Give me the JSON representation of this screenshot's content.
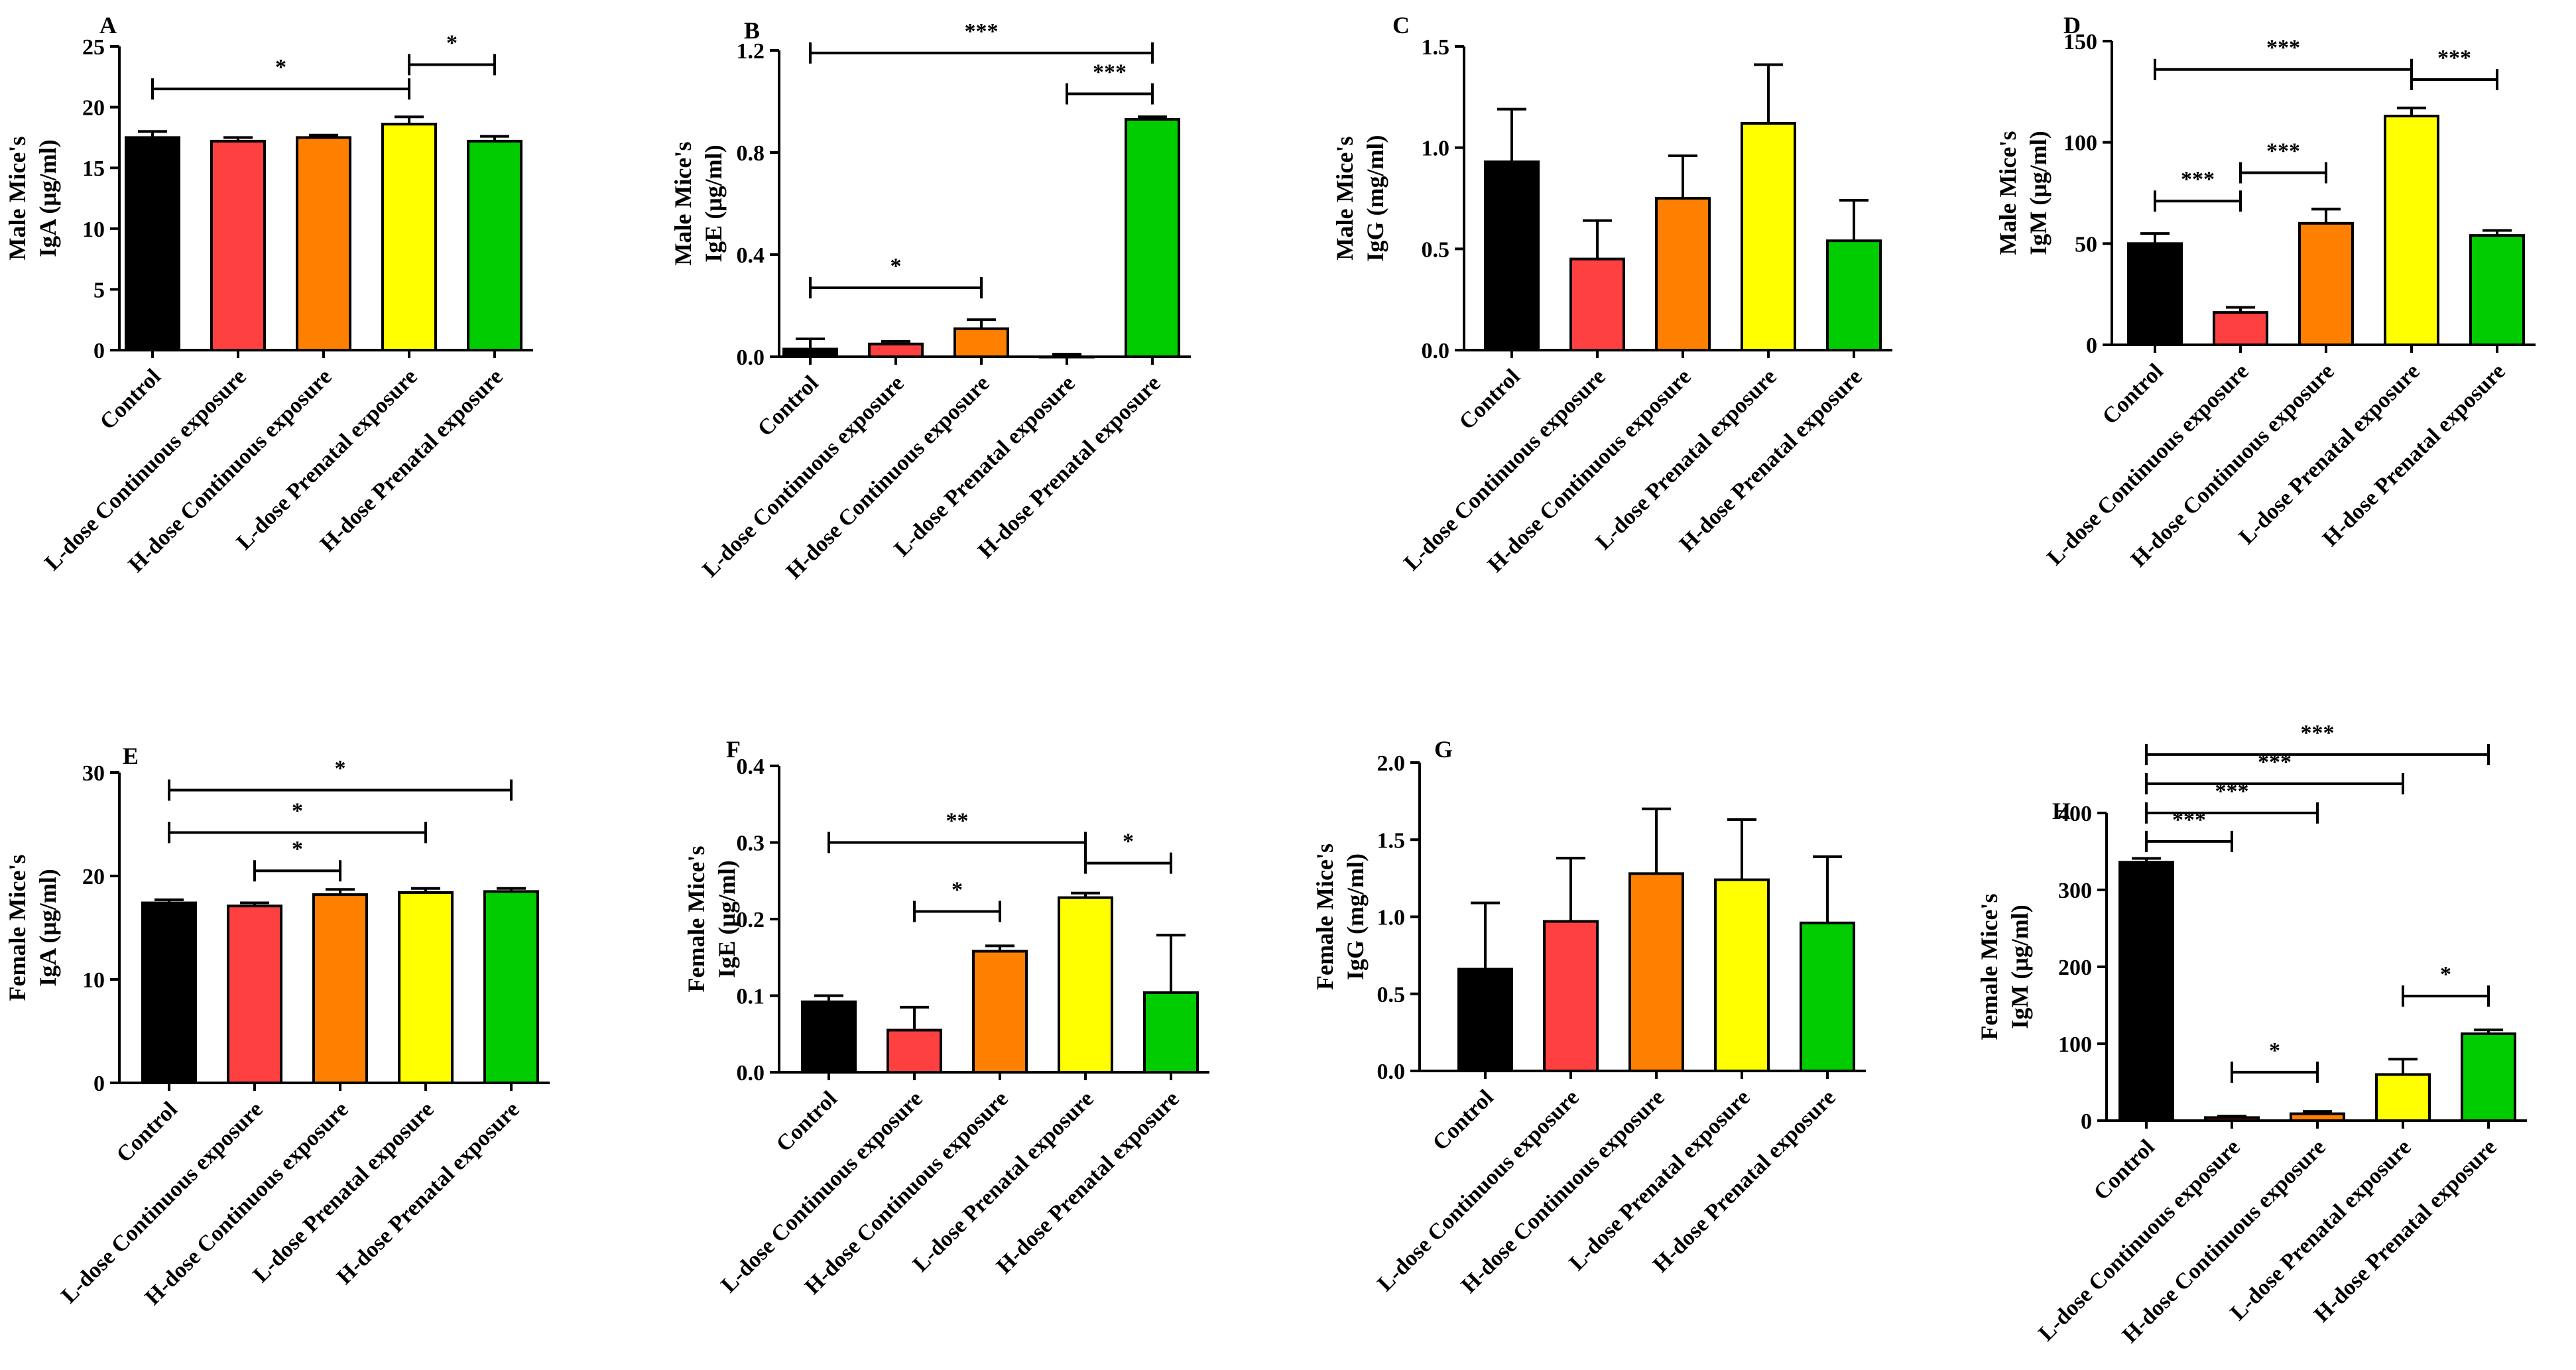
{
  "figure": {
    "bar_colors": [
      "#000000",
      "#ff4040",
      "#ff8000",
      "#ffff00",
      "#00cc00"
    ]
  },
  "chart_data": [
    {
      "type": "bar",
      "panel": "A",
      "ylabel_line1": "Male Mice's",
      "ylabel_line2": "IgA (μg/ml)",
      "ylim": [
        0,
        25
      ],
      "yticks": [
        "0",
        "5",
        "10",
        "15",
        "20",
        "25"
      ],
      "categories": [
        "Control",
        "L-dose Continuous exposure",
        "H-dose Continuous exposure",
        "L-dose Prenatal exposure",
        "H-dose Prenatal exposure"
      ],
      "values": [
        17.5,
        17.2,
        17.5,
        18.6,
        17.2
      ],
      "errors": [
        0.5,
        0.3,
        0.2,
        0.6,
        0.4
      ],
      "significance": [
        {
          "from": 0,
          "to": 3,
          "y": 21.5,
          "label": "*"
        },
        {
          "from": 3,
          "to": 4,
          "y": 23.5,
          "label": "*"
        }
      ]
    },
    {
      "type": "bar",
      "panel": "B",
      "ylabel_line1": "Male Mice's",
      "ylabel_line2": "IgE (μg/ml)",
      "ylim": [
        0,
        1.2
      ],
      "yticks": [
        "0.0",
        "0.4",
        "0.8",
        "1.2"
      ],
      "categories": [
        "Control",
        "L-dose Continuous exposure",
        "H-dose Continuous exposure",
        "L-dose Prenatal exposure",
        "H-dose Prenatal exposure"
      ],
      "values": [
        0.03,
        0.05,
        0.11,
        0.0,
        0.93
      ],
      "errors": [
        0.04,
        0.01,
        0.035,
        0.01,
        0.01
      ],
      "significance": [
        {
          "from": 0,
          "to": 2,
          "y": 0.27,
          "label": "*"
        },
        {
          "from": 0,
          "to": 4,
          "y": 1.19,
          "label": "***"
        },
        {
          "from": 3,
          "to": 4,
          "y": 1.03,
          "label": "***"
        }
      ]
    },
    {
      "type": "bar",
      "panel": "C",
      "ylabel_line1": "Male Mice's",
      "ylabel_line2": "IgG (mg/ml)",
      "ylim": [
        0,
        1.5
      ],
      "yticks": [
        "0.0",
        "0.5",
        "1.0",
        "1.5"
      ],
      "categories": [
        "Control",
        "L-dose Continuous exposure",
        "H-dose Continuous exposure",
        "L-dose Prenatal exposure",
        "H-dose Prenatal exposure"
      ],
      "values": [
        0.93,
        0.45,
        0.75,
        1.12,
        0.54
      ],
      "errors": [
        0.26,
        0.19,
        0.21,
        0.29,
        0.2
      ],
      "significance": []
    },
    {
      "type": "bar",
      "panel": "D",
      "ylabel_line1": "Male Mice's",
      "ylabel_line2": "IgM (μg/ml)",
      "ylim": [
        0,
        150
      ],
      "yticks": [
        "0",
        "50",
        "100",
        "150"
      ],
      "categories": [
        "Control",
        "L-dose Continuous exposure",
        "H-dose Continuous exposure",
        "L-dose Prenatal exposure",
        "H-dose Prenatal exposure"
      ],
      "values": [
        50,
        16,
        60,
        113,
        54
      ],
      "errors": [
        5,
        2.5,
        7,
        4,
        2.5
      ],
      "significance": [
        {
          "from": 0,
          "to": 3,
          "y": 136,
          "label": "***"
        },
        {
          "from": 3,
          "to": 4,
          "y": 131,
          "label": "***"
        },
        {
          "from": 0,
          "to": 1,
          "y": 71,
          "label": "***"
        },
        {
          "from": 1,
          "to": 2,
          "y": 85,
          "label": "***"
        }
      ]
    },
    {
      "type": "bar",
      "panel": "E",
      "ylabel_line1": "Female Mice's",
      "ylabel_line2": "IgA (μg/ml)",
      "ylim": [
        0,
        30
      ],
      "yticks": [
        "0",
        "10",
        "20",
        "30"
      ],
      "categories": [
        "Control",
        "L-dose Continuous exposure",
        "H-dose Continuous exposure",
        "L-dose Prenatal exposure",
        "H-dose Prenatal exposure"
      ],
      "values": [
        17.4,
        17.1,
        18.2,
        18.4,
        18.5
      ],
      "errors": [
        0.3,
        0.3,
        0.5,
        0.4,
        0.3
      ],
      "significance": [
        {
          "from": 0,
          "to": 4,
          "y": 28.3,
          "label": "*"
        },
        {
          "from": 0,
          "to": 3,
          "y": 24.2,
          "label": "*"
        },
        {
          "from": 1,
          "to": 2,
          "y": 20.5,
          "label": "*"
        }
      ]
    },
    {
      "type": "bar",
      "panel": "F",
      "ylabel_line1": "Female Mice's",
      "ylabel_line2": "IgE (μg/ml)",
      "ylim": [
        0,
        0.4
      ],
      "yticks": [
        "0.0",
        "0.1",
        "0.2",
        "0.3",
        "0.4"
      ],
      "categories": [
        "Control",
        "L-dose Continuous exposure",
        "H-dose Continuous exposure",
        "L-dose Prenatal exposure",
        "H-dose Prenatal exposure"
      ],
      "values": [
        0.092,
        0.055,
        0.158,
        0.228,
        0.104
      ],
      "errors": [
        0.008,
        0.03,
        0.007,
        0.006,
        0.075
      ],
      "significance": [
        {
          "from": 0,
          "to": 3,
          "y": 0.3,
          "label": "**"
        },
        {
          "from": 3,
          "to": 4,
          "y": 0.273,
          "label": "*"
        },
        {
          "from": 1,
          "to": 2,
          "y": 0.21,
          "label": "*"
        }
      ]
    },
    {
      "type": "bar",
      "panel": "G",
      "ylabel_line1": "Female Mice's",
      "ylabel_line2": "IgG (mg/ml)",
      "ylim": [
        0,
        2.0
      ],
      "yticks": [
        "0.0",
        "0.5",
        "1.0",
        "1.5",
        "2.0"
      ],
      "categories": [
        "Control",
        "L-dose Continuous exposure",
        "H-dose Continuous exposure",
        "L-dose Prenatal exposure",
        "H-dose Prenatal exposure"
      ],
      "values": [
        0.66,
        0.97,
        1.28,
        1.24,
        0.96
      ],
      "errors": [
        0.43,
        0.41,
        0.42,
        0.39,
        0.43
      ],
      "significance": []
    },
    {
      "type": "bar",
      "panel": "H",
      "ylabel_line1": "Female Mice's",
      "ylabel_line2": "IgM (μg/ml)",
      "ylim": [
        0,
        400
      ],
      "yticks": [
        "0",
        "100",
        "200",
        "300",
        "400"
      ],
      "categories": [
        "Control",
        "L-dose Continuous exposure",
        "H-dose Continuous exposure",
        "L-dose Prenatal exposure",
        "H-dose Prenatal exposure"
      ],
      "values": [
        336,
        4,
        9,
        60,
        113
      ],
      "errors": [
        5,
        2,
        3,
        20,
        5
      ],
      "significance": [
        {
          "from": 0,
          "to": 4,
          "y": 476,
          "label": "***"
        },
        {
          "from": 0,
          "to": 3,
          "y": 438,
          "label": "***"
        },
        {
          "from": 0,
          "to": 2,
          "y": 400,
          "label": "***"
        },
        {
          "from": 0,
          "to": 1,
          "y": 363,
          "label": "***"
        },
        {
          "from": 3,
          "to": 4,
          "y": 162,
          "label": "*"
        },
        {
          "from": 1,
          "to": 2,
          "y": 63,
          "label": "*"
        }
      ]
    }
  ]
}
